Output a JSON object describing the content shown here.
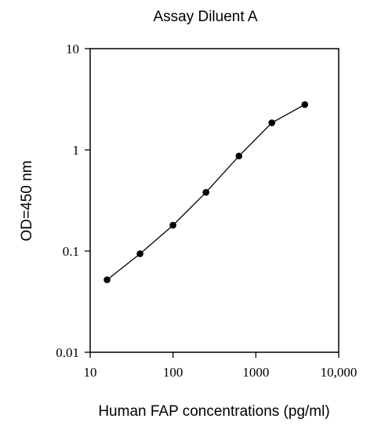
{
  "chart_data": {
    "type": "line",
    "title": "Assay Diluent A",
    "xlabel": "Human FAP concentrations (pg/ml)",
    "ylabel": "OD=450 nm",
    "xscale": "log",
    "yscale": "log",
    "xlim": [
      10,
      10000
    ],
    "ylim": [
      0.01,
      10
    ],
    "xticks": [
      "10",
      "100",
      "1000",
      "10,000"
    ],
    "yticks": [
      "0.01",
      "0.1",
      "1",
      "10"
    ],
    "grid": false,
    "legend": "none",
    "colors": {
      "series": "#000000",
      "axes": "#000000"
    },
    "series": [
      {
        "x": [
          16,
          40,
          100,
          250,
          625,
          1560,
          3900
        ],
        "y": [
          0.052,
          0.094,
          0.18,
          0.38,
          0.87,
          1.85,
          2.8
        ]
      }
    ]
  }
}
